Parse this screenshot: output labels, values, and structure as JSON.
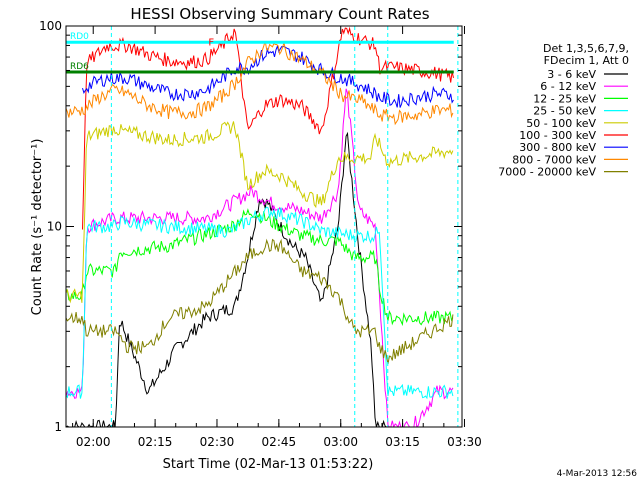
{
  "chart_data": {
    "type": "line",
    "title": "HESSI Observing Summary Count Rates",
    "xlabel": "Start Time (02-Mar-13 01:53:22)",
    "ylabel": "Count Rate (s⁻¹ detector⁻¹)",
    "ylim": [
      1,
      100
    ],
    "yscale": "log",
    "xlim_minutes": [
      0,
      96
    ],
    "x_ticks": [
      "02:00",
      "02:15",
      "02:30",
      "02:45",
      "03:00",
      "03:15",
      "03:30"
    ],
    "y_ticks": [
      "1",
      "10",
      "100"
    ],
    "legend_header": [
      "Det 1,3,5,6,7,9,",
      "FDecim 1, Att 0"
    ],
    "legend_position": "right",
    "grid": false,
    "series": [
      {
        "name": "3 - 6 keV",
        "color": "#000000",
        "x": [
          0,
          4,
          12,
          13,
          20,
          27,
          34,
          41,
          44,
          47,
          49,
          52,
          55,
          58,
          62,
          66,
          68,
          71,
          74,
          75,
          78
        ],
        "y": [
          1,
          1,
          1,
          3.5,
          1.5,
          2.5,
          3.5,
          4,
          7,
          14,
          13,
          10,
          8,
          7,
          4,
          10,
          30,
          8,
          2.5,
          1,
          1
        ]
      },
      {
        "name": "6 - 12 keV",
        "color": "#ff00ff",
        "x": [
          0,
          4,
          5,
          12,
          25,
          34,
          40,
          45,
          50,
          57,
          62,
          66,
          68,
          71,
          75,
          78,
          84,
          90,
          94
        ],
        "y": [
          1.5,
          1.5,
          10,
          11,
          11,
          11,
          13,
          15,
          13,
          12,
          11,
          15,
          50,
          12,
          10,
          1,
          1,
          1.5,
          1.5
        ]
      },
      {
        "name": "12 - 25 keV",
        "color": "#00ff00",
        "x": [
          0,
          4,
          5,
          12,
          13,
          25,
          40,
          45,
          50,
          57,
          62,
          66,
          70,
          75,
          76,
          78,
          94
        ],
        "y": [
          4.5,
          4.5,
          6,
          6,
          7.5,
          8,
          10,
          12,
          10.5,
          9,
          8.5,
          8.5,
          7,
          7,
          5,
          3.5,
          3.5
        ]
      },
      {
        "name": "25 - 50 keV",
        "color": "#00ffff",
        "x": [
          0,
          4,
          5,
          12,
          13,
          25,
          40,
          45,
          50,
          58,
          62,
          70,
          75,
          76,
          78,
          94
        ],
        "y": [
          1.5,
          1.5,
          10,
          10,
          10.5,
          10,
          9.5,
          11,
          12,
          10.5,
          9.5,
          9,
          9,
          10,
          1.5,
          1.5
        ]
      },
      {
        "name": "50 - 100 keV",
        "color": "#cccc00",
        "x": [
          0,
          4,
          5,
          12,
          13,
          25,
          34,
          41,
          44,
          48,
          52,
          57,
          62,
          66,
          74,
          75,
          78,
          94
        ],
        "y": [
          4.5,
          4.5,
          28,
          31,
          30,
          27,
          28,
          32,
          16,
          19,
          18,
          15,
          13,
          22,
          22,
          28,
          21,
          24
        ]
      },
      {
        "name": "100 - 300 keV",
        "color": "#ff0000",
        "x": [
          4,
          5,
          10,
          15,
          20,
          25,
          30,
          34,
          38,
          41,
          44,
          48,
          52,
          57,
          62,
          67,
          72,
          75,
          76,
          80,
          85,
          90,
          94
        ],
        "y": [
          10,
          65,
          80,
          80,
          72,
          67,
          66,
          68,
          80,
          95,
          30,
          40,
          43,
          40,
          30,
          95,
          85,
          80,
          62,
          62,
          60,
          58,
          55
        ]
      },
      {
        "name": "300 - 800 keV",
        "color": "#0000ff",
        "x": [
          4,
          5,
          10,
          15,
          20,
          25,
          30,
          34,
          38,
          41,
          44,
          48,
          52,
          57,
          62,
          67,
          72,
          75,
          76,
          80,
          85,
          90,
          94
        ],
        "y": [
          47,
          50,
          55,
          55,
          50,
          46,
          46,
          48,
          55,
          62,
          62,
          72,
          76,
          70,
          60,
          55,
          50,
          46,
          44,
          42,
          44,
          46,
          45
        ]
      },
      {
        "name": "800 - 7000 keV",
        "color": "#ff8800",
        "x": [
          0,
          4,
          8,
          12,
          15,
          20,
          25,
          30,
          34,
          38,
          41,
          44,
          48,
          52,
          57,
          62,
          67,
          72,
          76,
          80,
          85,
          90,
          94
        ],
        "y": [
          37,
          38,
          44,
          48,
          46,
          40,
          37,
          37,
          39,
          45,
          52,
          65,
          78,
          78,
          68,
          58,
          45,
          42,
          36,
          35,
          36,
          38,
          38
        ]
      },
      {
        "name": "7000 - 20000 keV",
        "color": "#808000",
        "x": [
          0,
          4,
          5,
          12,
          15,
          20,
          25,
          34,
          44,
          48,
          52,
          57,
          62,
          66,
          70,
          75,
          76,
          78,
          94
        ],
        "y": [
          3.5,
          3.5,
          3,
          3,
          2.5,
          2.5,
          3.5,
          4,
          7,
          8,
          8,
          6,
          5.5,
          4.5,
          3,
          3,
          2.5,
          2.2,
          3.5
        ]
      }
    ],
    "reference_lines": [
      {
        "label": "RD0",
        "color": "#00ffff",
        "y": 83
      },
      {
        "label": "RD6",
        "color": "#008000",
        "y": 59
      }
    ],
    "flare_marker": {
      "label": "F",
      "color": "#ff0000"
    },
    "dashed_vlines_minutes": [
      11,
      70,
      78,
      95
    ]
  },
  "footer": {
    "timestamp": "4-Mar-2013 12:56"
  }
}
